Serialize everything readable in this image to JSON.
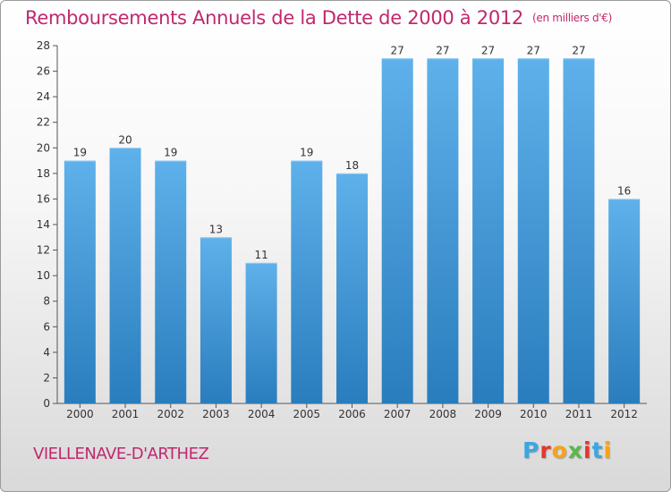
{
  "header": {
    "title": "Remboursements Annuels de la Dette de 2000 à 2012",
    "unit": "(en milliers d'€)"
  },
  "footer": {
    "commune": "VIELLENAVE-D'ARTHEZ",
    "logo_letters": [
      "P",
      "r",
      "o",
      "x",
      "i",
      "t",
      "i"
    ],
    "logo_colors": [
      "#3aa7e0",
      "#e8352b",
      "#f7a21b",
      "#5bb846",
      "#e8352b",
      "#3aa7e0",
      "#f7a21b"
    ]
  },
  "colors": {
    "title": "#c0286e",
    "bar_top": "#5eb1ea",
    "bar_bottom": "#2a7dbd"
  },
  "chart_data": {
    "type": "bar",
    "categories": [
      "2000",
      "2001",
      "2002",
      "2003",
      "2004",
      "2005",
      "2006",
      "2007",
      "2008",
      "2009",
      "2010",
      "2011",
      "2012"
    ],
    "values": [
      19,
      20,
      19,
      13,
      11,
      19,
      18,
      27,
      27,
      27,
      27,
      27,
      16
    ],
    "title": "Remboursements Annuels de la Dette de 2000 à 2012",
    "xlabel": "",
    "ylabel": "",
    "ylim": [
      0,
      28
    ],
    "yticks": [
      0,
      2,
      4,
      6,
      8,
      10,
      12,
      14,
      16,
      18,
      20,
      22,
      24,
      26,
      28
    ],
    "grid": false,
    "data_labels": true
  }
}
